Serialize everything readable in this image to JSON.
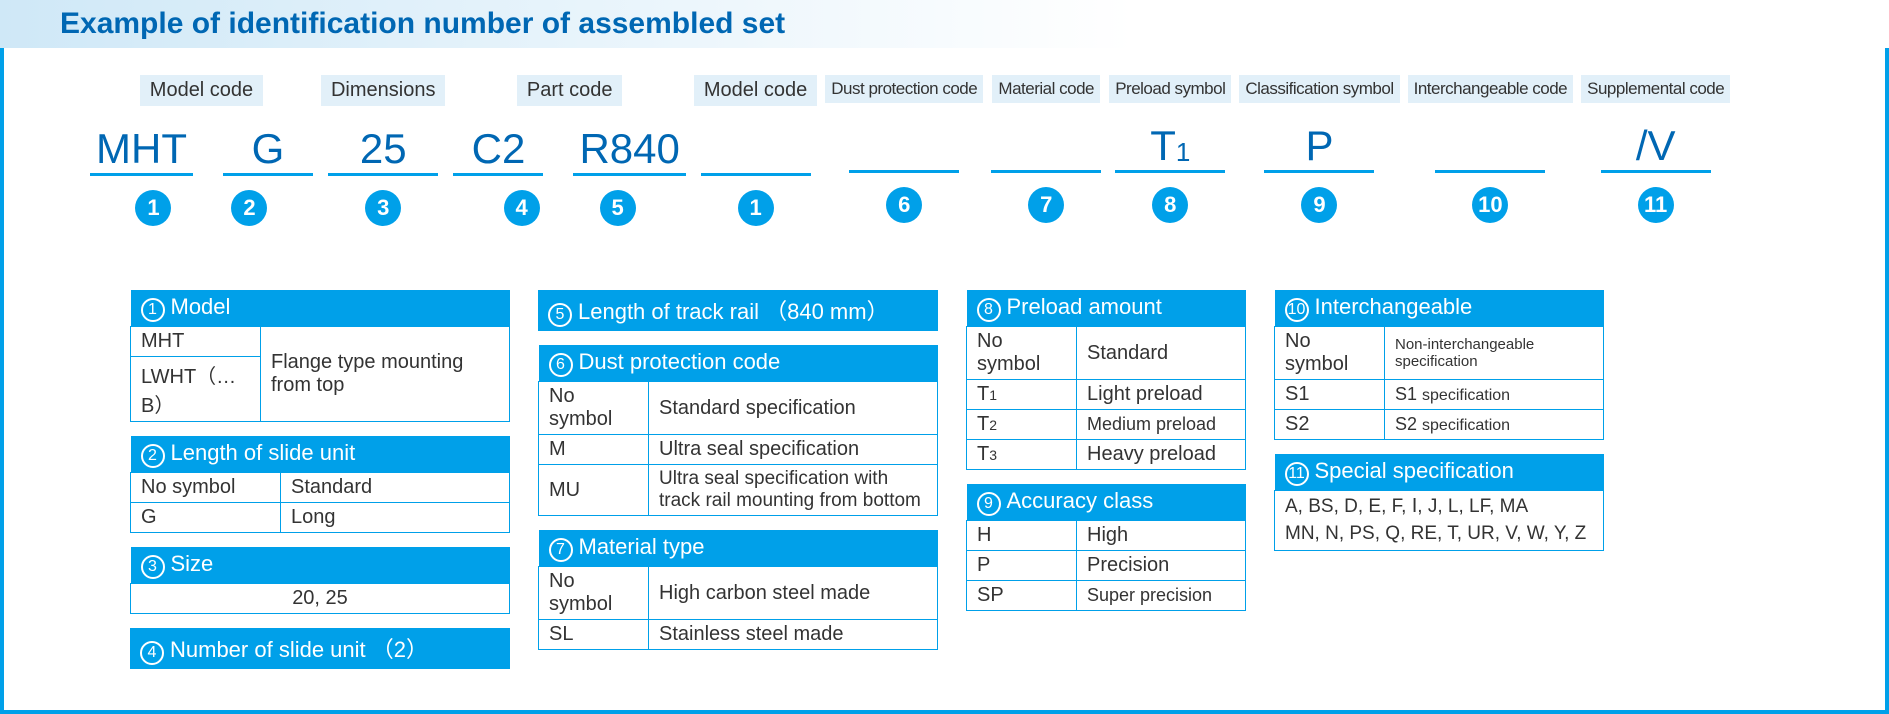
{
  "title": "Example of identification number of assembled set",
  "colors": {
    "primary": "#00a0e9",
    "textblue": "#0067b3",
    "labelbg": "#e2f0f9"
  },
  "idrow": {
    "groups": [
      {
        "label": "Model code",
        "slots": [
          {
            "value": "MHT",
            "badge": "1"
          },
          {
            "value": "G",
            "badge": "2"
          }
        ]
      },
      {
        "label": "Dimensions",
        "slots": [
          {
            "value": "25",
            "badge": "3"
          }
        ]
      },
      {
        "label": "Part code",
        "slots": [
          {
            "value": "C2",
            "badge": "4"
          },
          {
            "value": "R840",
            "badge": "5"
          }
        ]
      },
      {
        "label": "Model code",
        "slots": [
          {
            "value": "",
            "badge": "1"
          }
        ]
      },
      {
        "label": "Dust protection code",
        "small": true,
        "slots": [
          {
            "value": "",
            "badge": "6"
          }
        ]
      },
      {
        "label": "Material code",
        "small": true,
        "slots": [
          {
            "value": "",
            "badge": "7"
          }
        ]
      },
      {
        "label": "Preload symbol",
        "small": true,
        "slots": [
          {
            "value": "T",
            "sub": "1",
            "badge": "8"
          }
        ]
      },
      {
        "label": "Classification symbol",
        "small": true,
        "slots": [
          {
            "value": "P",
            "badge": "9"
          }
        ]
      },
      {
        "label": "Interchangeable code",
        "small": true,
        "slots": [
          {
            "value": "",
            "badge": "10"
          }
        ]
      },
      {
        "label": "Supplemental code",
        "small": true,
        "slots": [
          {
            "value": "/V",
            "badge": "11"
          }
        ]
      }
    ]
  },
  "tables": {
    "model": {
      "num": "1",
      "title": "Model",
      "rows": [
        [
          "MHT",
          ""
        ],
        [
          "LWHT（…B）",
          "Flange type mounting from top"
        ]
      ]
    },
    "length_slide": {
      "num": "2",
      "title": "Length of slide unit",
      "rows": [
        [
          "No symbol",
          "Standard"
        ],
        [
          "G",
          "Long"
        ]
      ]
    },
    "size": {
      "num": "3",
      "title": "Size",
      "row": "20, 25"
    },
    "num_slide": {
      "num": "4",
      "title": "Number of slide unit （2）"
    },
    "rail_len": {
      "num": "5",
      "title": "Length of track rail （840 mm）"
    },
    "dust": {
      "num": "6",
      "title": "Dust protection code",
      "rows": [
        [
          "No symbol",
          "Standard specification"
        ],
        [
          "M",
          "Ultra seal specification"
        ],
        [
          "MU",
          "Ultra seal specification with track rail mounting from bottom"
        ]
      ]
    },
    "material": {
      "num": "7",
      "title": "Material type",
      "rows": [
        [
          "No symbol",
          "High carbon steel made"
        ],
        [
          "SL",
          "Stainless steel made"
        ]
      ]
    },
    "preload": {
      "num": "8",
      "title": "Preload amount",
      "rows": [
        [
          "No symbol",
          "Standard"
        ],
        [
          "T1",
          "Light preload"
        ],
        [
          "T2",
          "Medium preload"
        ],
        [
          "T3",
          "Heavy preload"
        ]
      ]
    },
    "accuracy": {
      "num": "9",
      "title": "Accuracy class",
      "rows": [
        [
          "H",
          "High"
        ],
        [
          "P",
          "Precision"
        ],
        [
          "SP",
          "Super precision"
        ]
      ]
    },
    "interchange": {
      "num": "10",
      "title": "Interchangeable",
      "rows": [
        [
          "No symbol",
          "Non-interchangeable specification"
        ],
        [
          "S1",
          "S1 specification"
        ],
        [
          "S2",
          "S2 specification"
        ]
      ]
    },
    "special": {
      "num": "11",
      "title": "Special specification",
      "row": "A, BS, D, E, F, Ⅰ, J, L, LF, MA MN, N, PS, Q, RE, T, UR, V, W, Y, Z"
    }
  }
}
